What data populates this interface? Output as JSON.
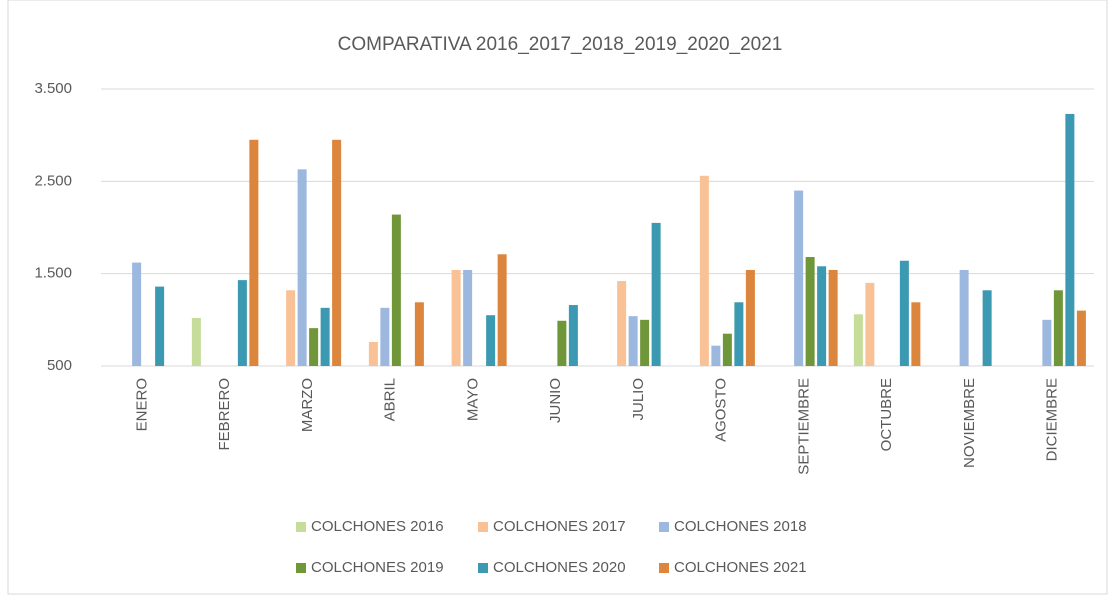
{
  "chart_data": {
    "type": "bar",
    "title": "COMPARATIVA 2016_2017_2018_2019_2020_2021",
    "categories": [
      "ENERO",
      "FEBRERO",
      "MARZO",
      "ABRIL",
      "MAYO",
      "JUNIO",
      "JULIO",
      "AGOSTO",
      "SEPTIEMBRE",
      "OCTUBRE",
      "NOVIEMBRE",
      "DICIEMBRE"
    ],
    "series": [
      {
        "name": "COLCHONES 2016",
        "color": "#c5dc9a",
        "values": [
          null,
          1020,
          null,
          null,
          null,
          null,
          null,
          null,
          null,
          1060,
          null,
          null
        ]
      },
      {
        "name": "COLCHONES 2017",
        "color": "#f9c196",
        "values": [
          null,
          null,
          1320,
          760,
          1540,
          null,
          1420,
          2560,
          null,
          1400,
          null,
          null
        ]
      },
      {
        "name": "COLCHONES 2018",
        "color": "#9db8df",
        "values": [
          1620,
          null,
          2630,
          1130,
          1540,
          null,
          1040,
          720,
          2400,
          null,
          1540,
          1000
        ]
      },
      {
        "name": "COLCHONES 2019",
        "color": "#70963a",
        "values": [
          null,
          null,
          910,
          2140,
          null,
          990,
          1000,
          850,
          1680,
          null,
          null,
          1320
        ]
      },
      {
        "name": "COLCHONES 2020",
        "color": "#3b99b1",
        "values": [
          1360,
          1430,
          1130,
          null,
          1050,
          1160,
          2050,
          1190,
          1580,
          1640,
          1320,
          3230
        ]
      },
      {
        "name": "COLCHONES 2021",
        "color": "#dc853d",
        "values": [
          null,
          2950,
          2950,
          1190,
          1710,
          null,
          null,
          1540,
          1540,
          1190,
          null,
          1100
        ]
      }
    ],
    "ylim": [
      500,
      3500
    ],
    "yticks": [
      500,
      {
        "value": 1500,
        "label": "1.500"
      },
      {
        "value": 2500,
        "label": "2.500"
      },
      {
        "value": 3500,
        "label": "3.500"
      }
    ],
    "grid": true,
    "legend": "bottom"
  }
}
